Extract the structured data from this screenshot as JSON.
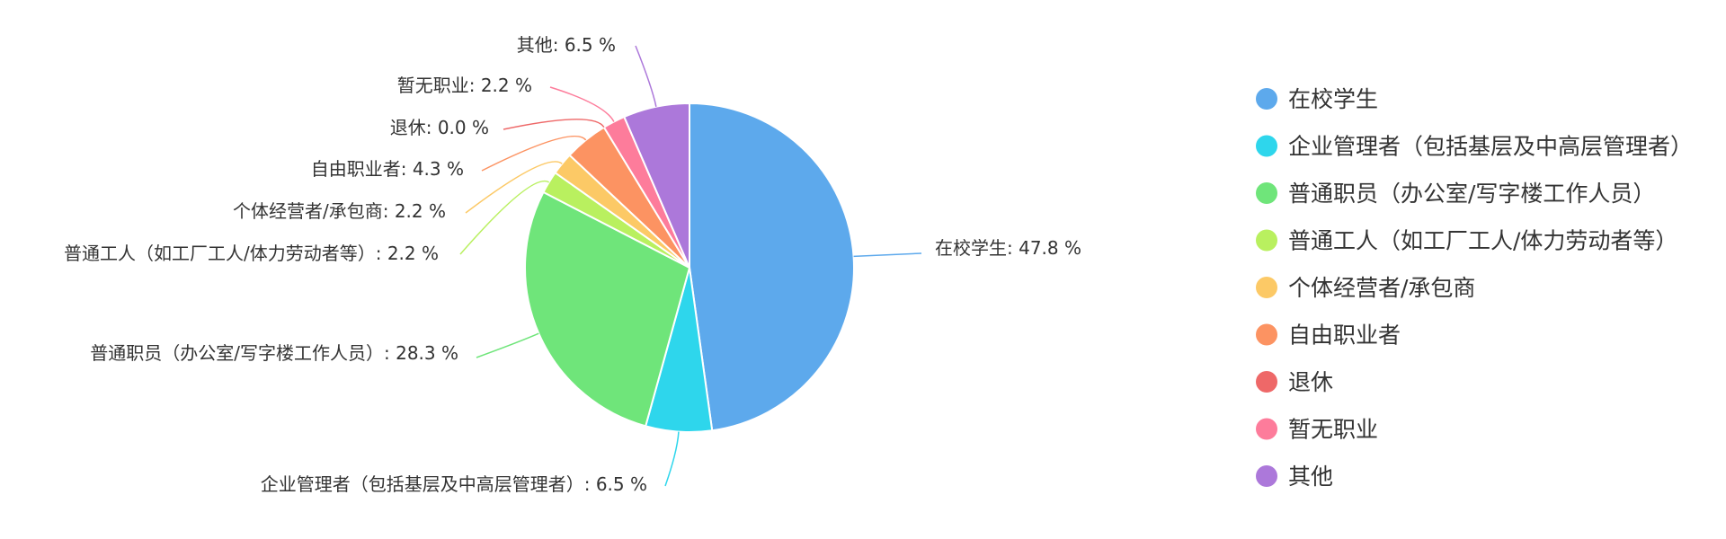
{
  "chart_data": {
    "type": "pie",
    "title": "",
    "legend_position": "right",
    "unit": "%",
    "slices": [
      {
        "name": "在校学生",
        "value": 47.8,
        "color": "#5DA9EC"
      },
      {
        "name": "企业管理者（包括基层及中高层管理者）",
        "value": 6.5,
        "color": "#2ED6EC"
      },
      {
        "name": "普通职员（办公室/写字楼工作人员）",
        "value": 28.3,
        "color": "#6FE57A"
      },
      {
        "name": "普通工人（如工厂工人/体力劳动者等）",
        "value": 2.2,
        "color": "#B9F05F"
      },
      {
        "name": "个体经营者/承包商",
        "value": 2.2,
        "color": "#FCC966"
      },
      {
        "name": "自由职业者",
        "value": 4.3,
        "color": "#FC9362"
      },
      {
        "name": "退休",
        "value": 0.0,
        "color": "#EE6868"
      },
      {
        "name": "暂无职业",
        "value": 2.2,
        "color": "#FD7C9B"
      },
      {
        "name": "其他",
        "value": 6.5,
        "color": "#AC78DA"
      }
    ],
    "data_labels": [
      {
        "slice": 0,
        "text": "在校学生: 47.8 %"
      },
      {
        "slice": 1,
        "text": "企业管理者（包括基层及中高层管理者）: 6.5 %"
      },
      {
        "slice": 2,
        "text": "普通职员（办公室/写字楼工作人员）: 28.3 %"
      },
      {
        "slice": 3,
        "text": "普通工人（如工厂工人/体力劳动者等）: 2.2 %"
      },
      {
        "slice": 4,
        "text": "个体经营者/承包商: 2.2 %"
      },
      {
        "slice": 5,
        "text": "自由职业者: 4.3 %"
      },
      {
        "slice": 6,
        "text": "退休: 0.0 %"
      },
      {
        "slice": 7,
        "text": "暂无职业: 2.2 %"
      },
      {
        "slice": 8,
        "text": "其他: 6.5 %"
      }
    ]
  }
}
